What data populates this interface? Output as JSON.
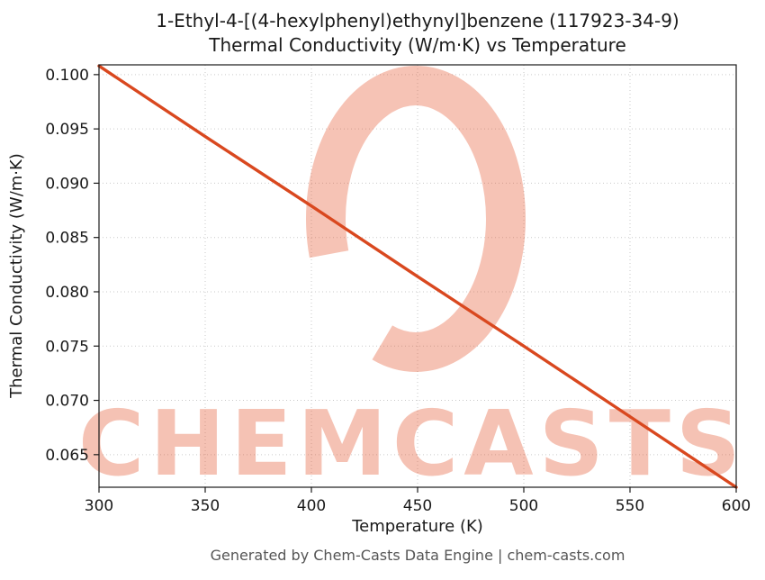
{
  "header": {
    "title_line1": "1-Ethyl-4-[(4-hexylphenyl)ethynyl]benzene (117923-34-9)",
    "title_line2": "Thermal Conductivity (W/m·K) vs Temperature"
  },
  "footer": {
    "text": "Generated by Chem-Casts Data Engine | chem-casts.com"
  },
  "watermark": {
    "text": "CHEMCASTS",
    "color": "#e4532a",
    "opacity": "0.35"
  },
  "chart_data": {
    "type": "line",
    "title": "1-Ethyl-4-[(4-hexylphenyl)ethynyl]benzene (117923-34-9) Thermal Conductivity (W/m·K) vs Temperature",
    "xlabel": "Temperature (K)",
    "ylabel": "Thermal Conductivity (W/m·K)",
    "x": [
      300,
      350,
      400,
      450,
      500,
      550,
      600
    ],
    "values": [
      0.1008,
      0.0943,
      0.0879,
      0.0814,
      0.075,
      0.0685,
      0.062
    ],
    "xlim": [
      300,
      600
    ],
    "ylim": [
      0.062,
      0.1009
    ],
    "x_ticks": [
      300,
      350,
      400,
      450,
      500,
      550,
      600
    ],
    "x_tick_labels": [
      "300",
      "350",
      "400",
      "450",
      "500",
      "550",
      "600"
    ],
    "y_ticks": [
      0.065,
      0.07,
      0.075,
      0.08,
      0.085,
      0.09,
      0.095,
      0.1
    ],
    "y_tick_labels": [
      "0.065",
      "0.070",
      "0.075",
      "0.080",
      "0.085",
      "0.090",
      "0.095",
      "0.100"
    ],
    "line_color": "#d9481f",
    "grid": true,
    "legend": false
  }
}
